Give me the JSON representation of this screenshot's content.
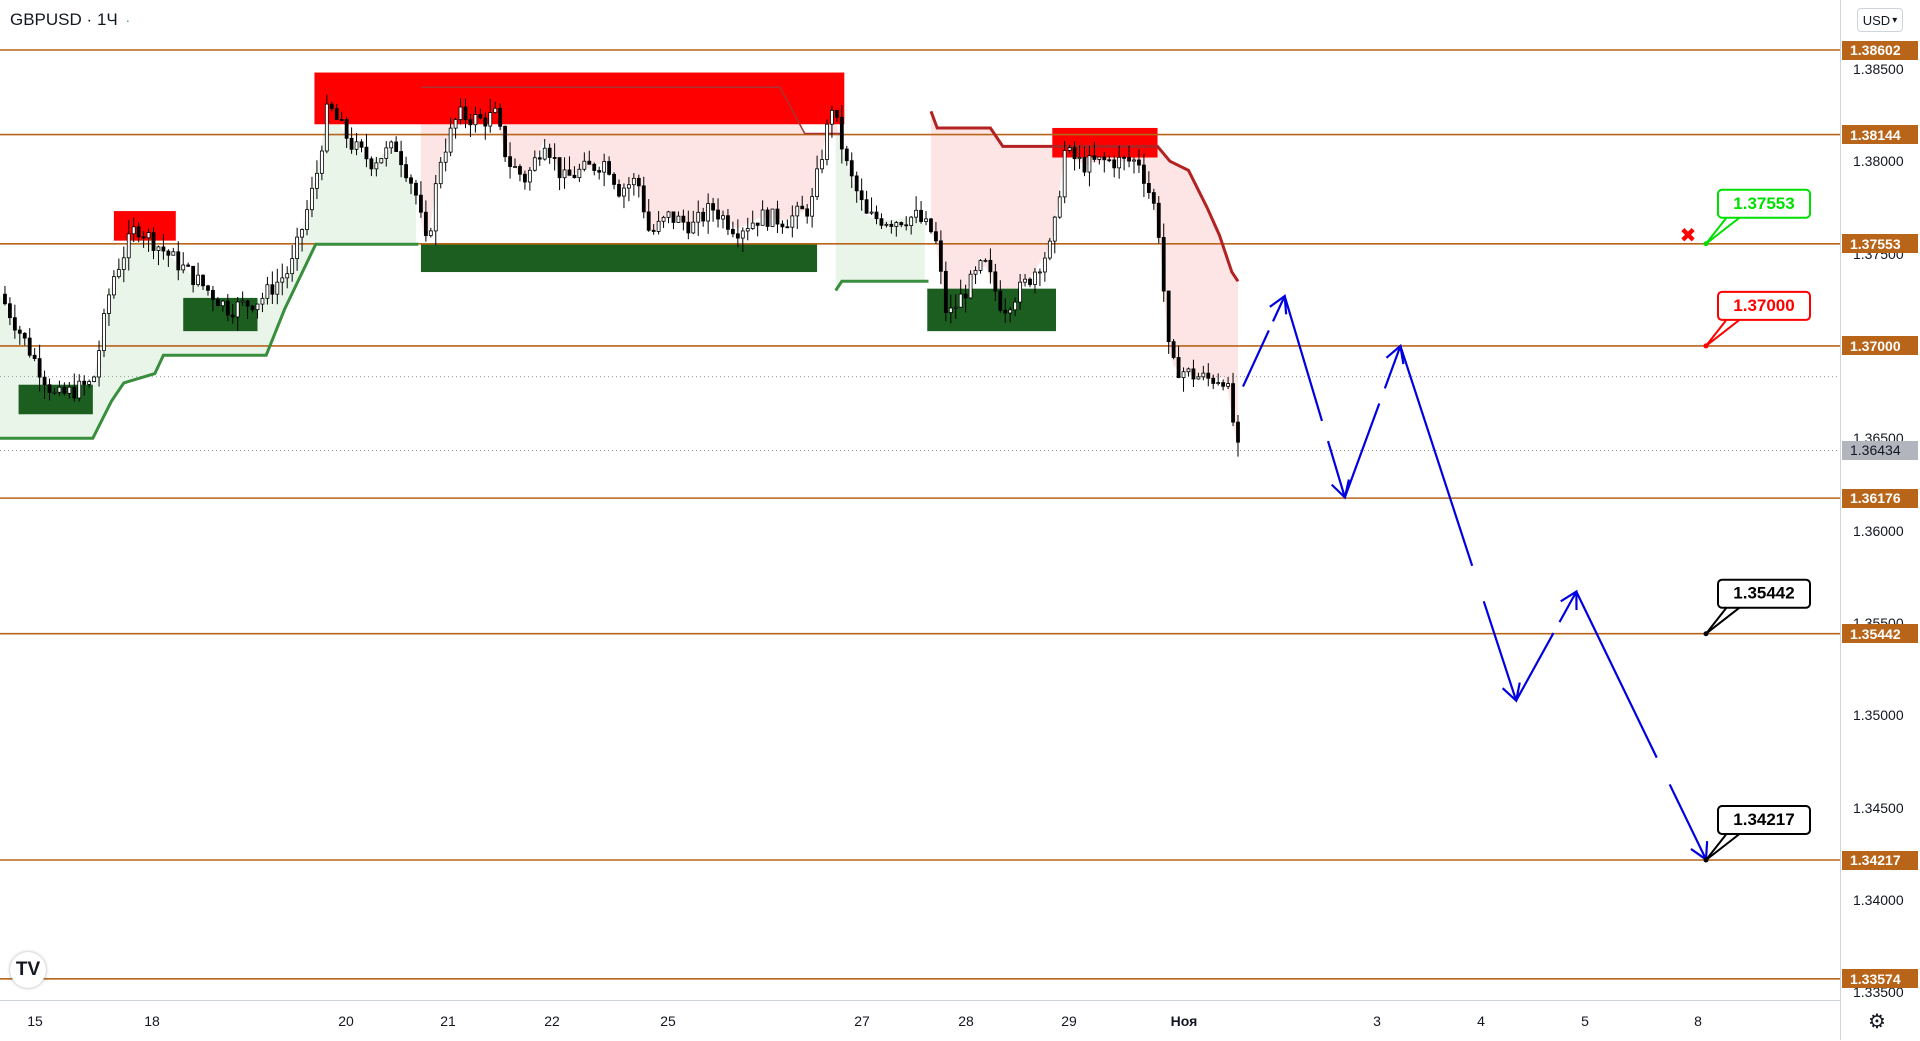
{
  "header": {
    "symbol": "GBPUSD",
    "interval": "1Ч",
    "separator": "·",
    "currency": "USD",
    "currency_caret": "▾"
  },
  "logo_text": "TV",
  "settings_glyph": "⚙",
  "colors": {
    "level_line": "#b8651a",
    "support_green": "#1b5e20",
    "resistance_red": "#ff0000",
    "trail_red": "#b22222",
    "trail_green": "#388e3c",
    "green_shade": "#eaf5ea",
    "red_shade": "#fde5e5",
    "forecast_blue": "#0000e0",
    "callout_green": "#00e000",
    "callout_red": "#ff0000",
    "callout_black": "#000000"
  },
  "chart_data": {
    "type": "candlestick",
    "symbol": "GBPUSD",
    "timeframe": "1Ч",
    "ylim": [
      1.335,
      1.3885
    ],
    "y_ticks": [
      "1.38500",
      "1.38000",
      "1.37500",
      "1.36500",
      "1.36000",
      "1.35500",
      "1.35000",
      "1.34500",
      "1.34000",
      "1.33500"
    ],
    "x_ticks": [
      "15",
      "18",
      "20",
      "21",
      "22",
      "25",
      "27",
      "28",
      "29",
      "Ноя",
      "3",
      "4",
      "5",
      "8"
    ],
    "levels": [
      {
        "label": "1.38602",
        "value": 1.38602,
        "style": "solid"
      },
      {
        "label": "1.38144",
        "value": 1.38144,
        "style": "solid"
      },
      {
        "label": "1.37553",
        "value": 1.37553,
        "style": "solid"
      },
      {
        "label": "1.37000",
        "value": 1.37,
        "style": "solid"
      },
      {
        "label": "1.36176",
        "value": 1.36176,
        "style": "solid"
      },
      {
        "label": "1.35442",
        "value": 1.35442,
        "style": "solid"
      },
      {
        "label": "1.34217",
        "value": 1.34217,
        "style": "solid"
      },
      {
        "label": "1.33574",
        "value": 1.33574,
        "style": "solid"
      }
    ],
    "current_price": {
      "label": "1.36434",
      "value": 1.36434
    },
    "dotted_reference": 1.36834,
    "callouts": [
      {
        "text": "1.37553",
        "anchor_price": 1.37553,
        "kind": "green"
      },
      {
        "text": "1.37000",
        "anchor_price": 1.37,
        "kind": "red"
      },
      {
        "text": "1.35442",
        "anchor_price": 1.35442,
        "kind": "black"
      },
      {
        "text": "1.34217",
        "anchor_price": 1.34217,
        "kind": "black"
      }
    ],
    "cancel_marker": "✖",
    "forecast_path": [
      {
        "t": 0.0,
        "price": 1.3678
      },
      {
        "t": 0.09,
        "price": 1.3727
      },
      {
        "t": 0.22,
        "price": 1.3618
      },
      {
        "t": 0.34,
        "price": 1.37
      },
      {
        "t": 0.59,
        "price": 1.3508
      },
      {
        "t": 0.72,
        "price": 1.3567
      },
      {
        "t": 1.0,
        "price": 1.3422
      }
    ],
    "zones": [
      {
        "kind": "supply",
        "price_top": 1.3773,
        "price_bottom": 1.3757
      },
      {
        "kind": "supply",
        "price_top": 1.3848,
        "price_bottom": 1.382
      },
      {
        "kind": "supply",
        "price_top": 1.3818,
        "price_bottom": 1.3802
      },
      {
        "kind": "demand",
        "price_top": 1.3679,
        "price_bottom": 1.3663
      },
      {
        "kind": "demand",
        "price_top": 1.3726,
        "price_bottom": 1.3708
      },
      {
        "kind": "demand",
        "price_top": 1.3755,
        "price_bottom": 1.374
      },
      {
        "kind": "demand",
        "price_top": 1.3731,
        "price_bottom": 1.3708
      }
    ],
    "price_path": [
      [
        0.0,
        1.3728
      ],
      [
        0.03,
        1.369
      ],
      [
        0.045,
        1.3672
      ],
      [
        0.075,
        1.368
      ],
      [
        0.09,
        1.3735
      ],
      [
        0.11,
        1.3765
      ],
      [
        0.135,
        1.375
      ],
      [
        0.16,
        1.3735
      ],
      [
        0.185,
        1.372
      ],
      [
        0.21,
        1.3725
      ],
      [
        0.235,
        1.3742
      ],
      [
        0.255,
        1.379
      ],
      [
        0.265,
        1.383
      ],
      [
        0.285,
        1.3808
      ],
      [
        0.3,
        1.38
      ],
      [
        0.32,
        1.3808
      ],
      [
        0.335,
        1.3785
      ],
      [
        0.345,
        1.3752
      ],
      [
        0.355,
        1.38
      ],
      [
        0.37,
        1.3825
      ],
      [
        0.39,
        1.3822
      ],
      [
        0.4,
        1.3825
      ],
      [
        0.41,
        1.38
      ],
      [
        0.425,
        1.379
      ],
      [
        0.44,
        1.3812
      ],
      [
        0.455,
        1.379
      ],
      [
        0.47,
        1.3795
      ],
      [
        0.49,
        1.38
      ],
      [
        0.5,
        1.3785
      ],
      [
        0.515,
        1.379
      ],
      [
        0.525,
        1.376
      ],
      [
        0.54,
        1.377
      ],
      [
        0.56,
        1.3765
      ],
      [
        0.575,
        1.3775
      ],
      [
        0.595,
        1.3763
      ],
      [
        0.615,
        1.377
      ],
      [
        0.635,
        1.3768
      ],
      [
        0.655,
        1.3775
      ],
      [
        0.672,
        1.383
      ],
      [
        0.685,
        1.3795
      ],
      [
        0.7,
        1.377
      ],
      [
        0.72,
        1.3768
      ],
      [
        0.74,
        1.377
      ],
      [
        0.755,
        1.376
      ],
      [
        0.765,
        1.3715
      ],
      [
        0.78,
        1.373
      ],
      [
        0.795,
        1.3745
      ],
      [
        0.81,
        1.372
      ],
      [
        0.83,
        1.3735
      ],
      [
        0.85,
        1.3755
      ],
      [
        0.86,
        1.3805
      ],
      [
        0.875,
        1.3798
      ],
      [
        0.89,
        1.38
      ],
      [
        0.905,
        1.38
      ],
      [
        0.92,
        1.38
      ],
      [
        0.935,
        1.377
      ],
      [
        0.945,
        1.369
      ],
      [
        0.96,
        1.3685
      ],
      [
        0.975,
        1.3682
      ],
      [
        0.99,
        1.3683
      ],
      [
        1.0,
        1.3643
      ]
    ],
    "trail_support": [
      [
        0.0,
        1.365
      ],
      [
        0.075,
        1.365
      ],
      [
        0.09,
        1.367
      ],
      [
        0.1,
        1.368
      ],
      [
        0.125,
        1.3685
      ],
      [
        0.132,
        1.3695
      ],
      [
        0.215,
        1.3695
      ],
      [
        0.23,
        1.372
      ],
      [
        0.255,
        1.3755
      ],
      [
        0.338,
        1.3755
      ]
    ],
    "trail_support_2": [
      [
        0.675,
        1.373
      ],
      [
        0.68,
        1.3735
      ],
      [
        0.75,
        1.3735
      ]
    ],
    "trail_resistance": [
      [
        0.34,
        1.384
      ],
      [
        0.63,
        1.384
      ],
      [
        0.65,
        1.3815
      ],
      [
        0.67,
        1.3815
      ],
      [
        0.68,
        1.3815
      ]
    ],
    "trail_resistance_2": [
      [
        0.752,
        1.3827
      ],
      [
        0.757,
        1.3818
      ],
      [
        0.8,
        1.3818
      ],
      [
        0.81,
        1.3808
      ],
      [
        0.935,
        1.3808
      ],
      [
        0.945,
        1.38
      ],
      [
        0.96,
        1.3795
      ],
      [
        0.975,
        1.3775
      ],
      [
        0.985,
        1.376
      ],
      [
        0.995,
        1.374
      ],
      [
        1.0,
        1.3735
      ]
    ]
  }
}
